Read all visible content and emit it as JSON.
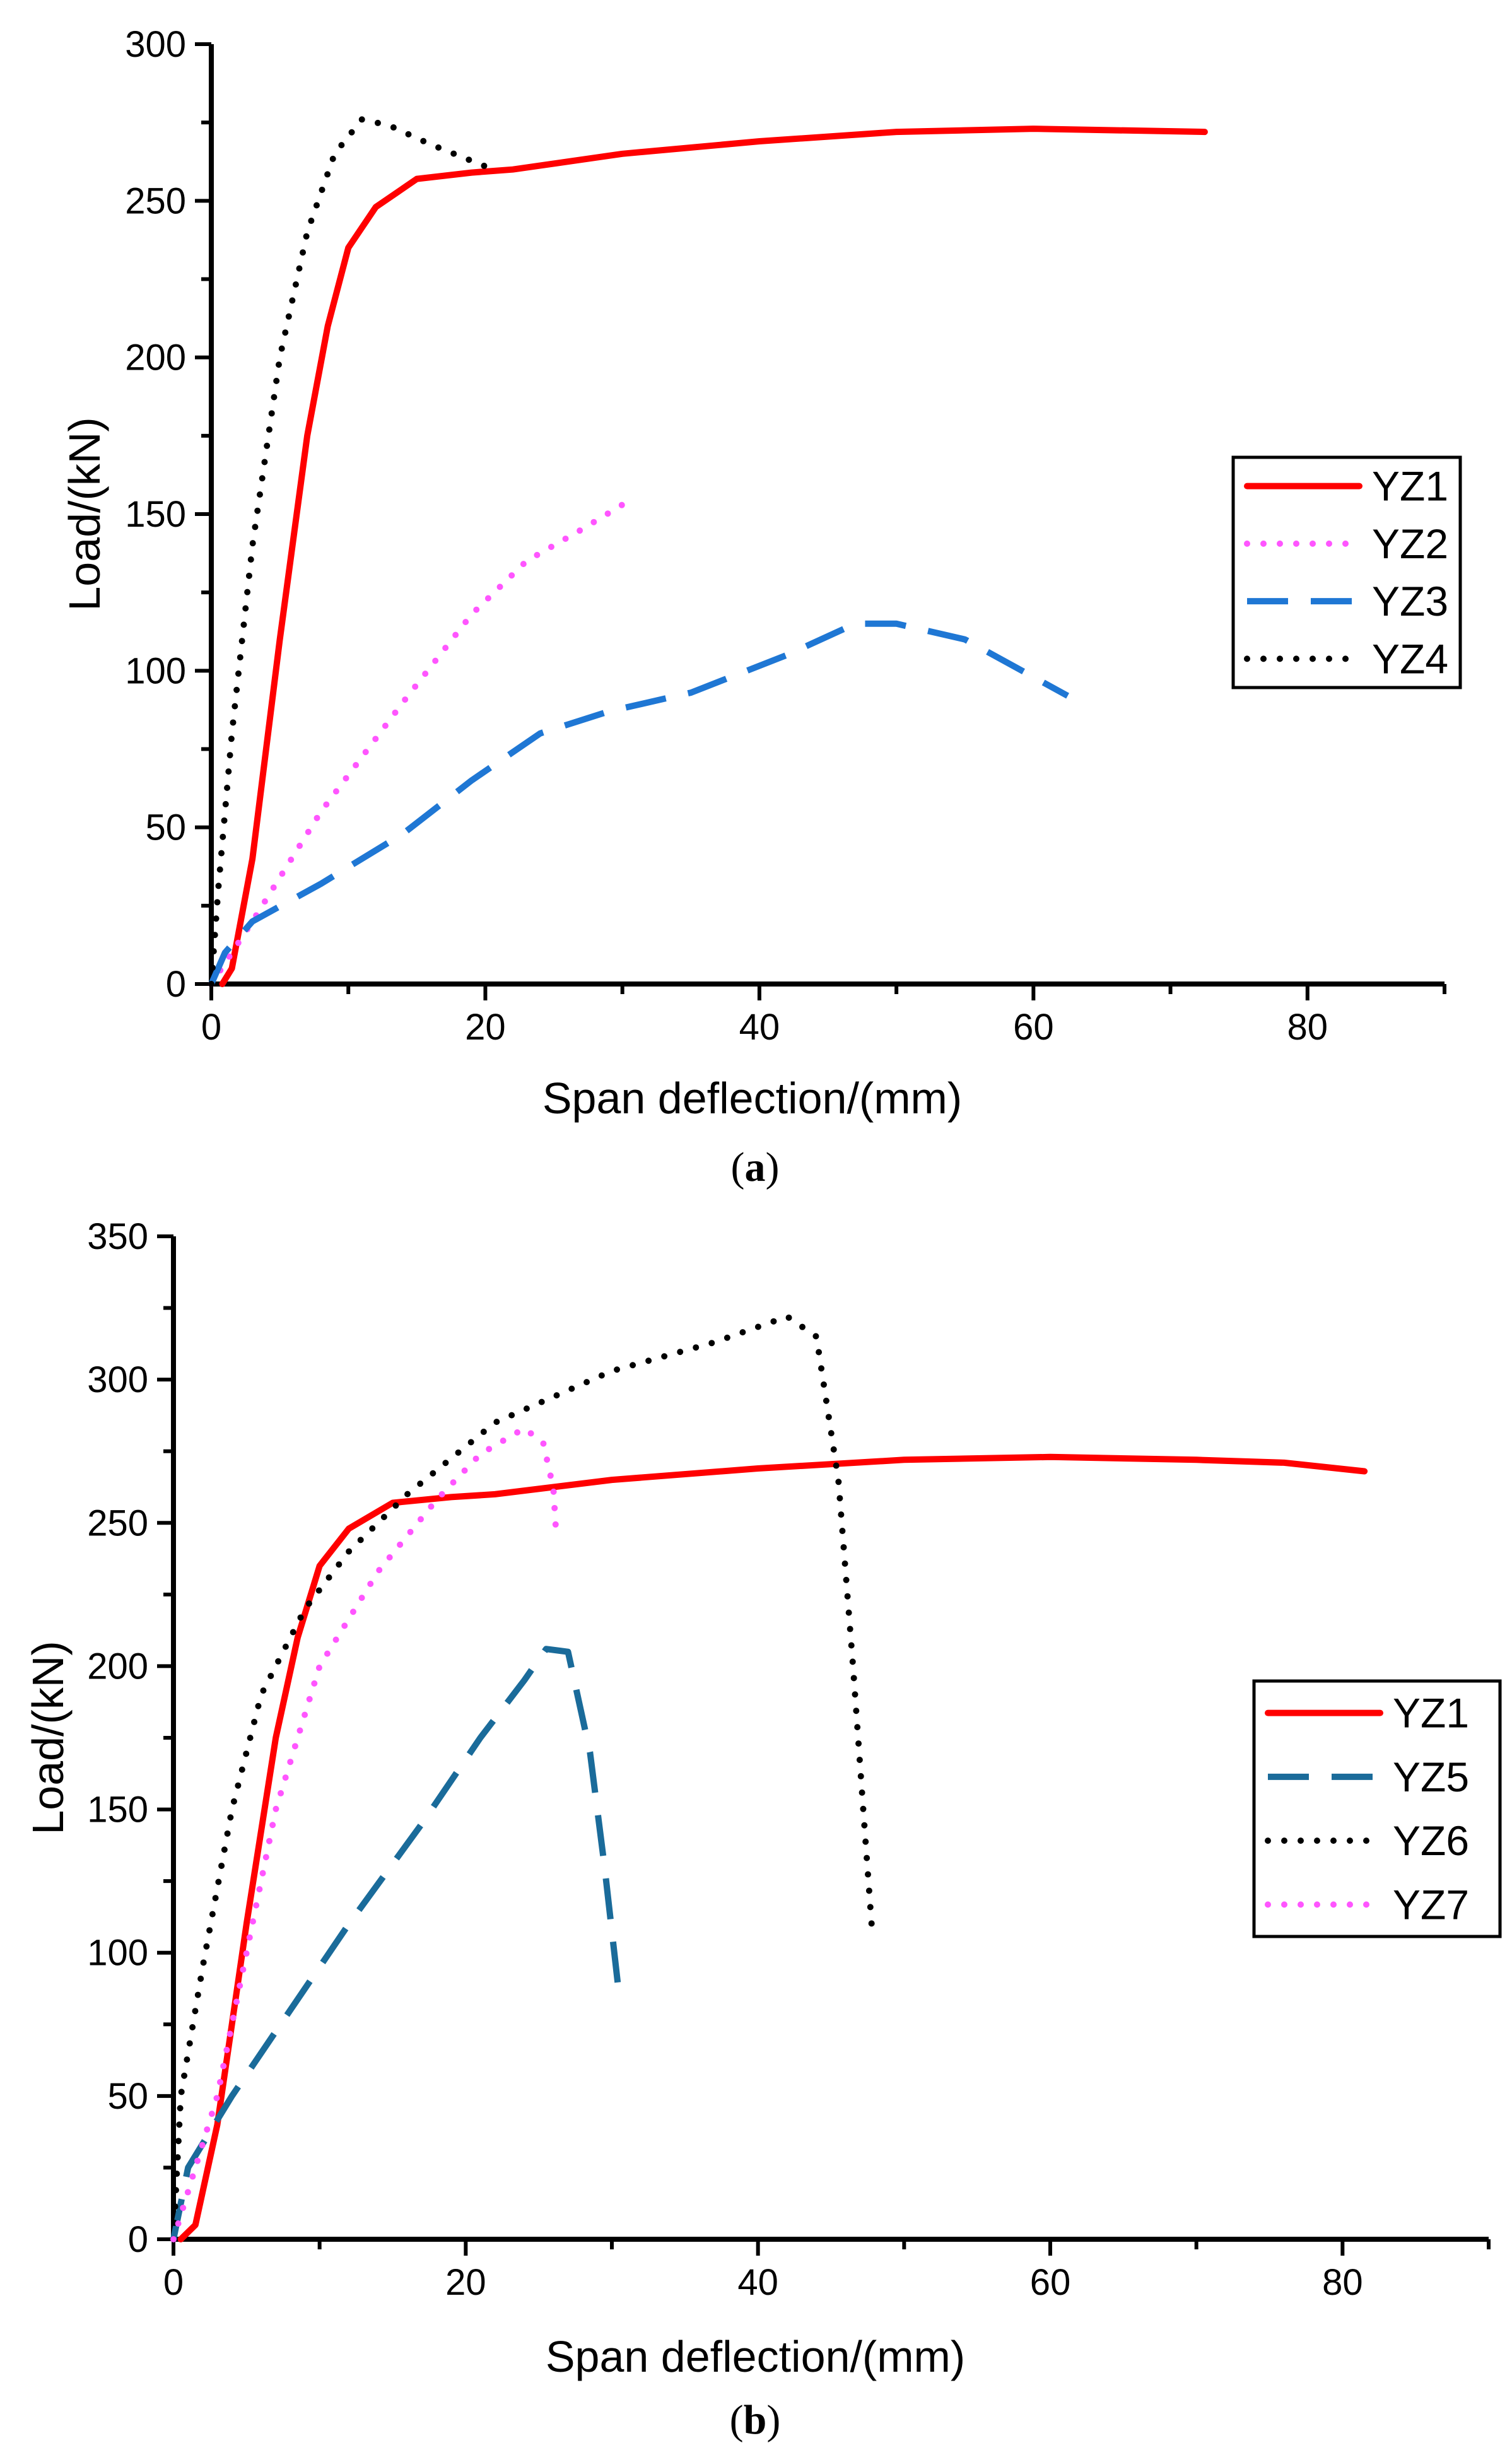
{
  "chart_data": [
    {
      "type": "line",
      "panel_label": "a",
      "caption_left": "(",
      "caption_right": ")",
      "xlabel": "Span deflection/(mm)",
      "ylabel": "Load/(kN)",
      "xlim": [
        0,
        90
      ],
      "ylim": [
        0,
        300
      ],
      "xticks": [
        0,
        20,
        40,
        60,
        80
      ],
      "yticks": [
        0,
        50,
        100,
        150,
        200,
        250,
        300
      ],
      "legend_position": "right-middle",
      "series": [
        {
          "name": "YZ1",
          "color": "#ff0000",
          "style": "solid",
          "points": [
            [
              0.8,
              0
            ],
            [
              1.5,
              5
            ],
            [
              3,
              40
            ],
            [
              5,
              110
            ],
            [
              7,
              175
            ],
            [
              8.5,
              210
            ],
            [
              10,
              235
            ],
            [
              12,
              248
            ],
            [
              15,
              257
            ],
            [
              19,
              259
            ],
            [
              22,
              260
            ],
            [
              30,
              265
            ],
            [
              40,
              269
            ],
            [
              50,
              272
            ],
            [
              60,
              273
            ],
            [
              72.5,
              272
            ]
          ]
        },
        {
          "name": "YZ2",
          "color": "#ff55ff",
          "style": "dotted",
          "points": [
            [
              0,
              0
            ],
            [
              3,
              20
            ],
            [
              8,
              55
            ],
            [
              14,
              90
            ],
            [
              19,
              118
            ],
            [
              23,
              135
            ],
            [
              27,
              145
            ],
            [
              30,
              153
            ]
          ]
        },
        {
          "name": "YZ3",
          "color": "#1f77d4",
          "style": "dashed",
          "points": [
            [
              0,
              0
            ],
            [
              1,
              10
            ],
            [
              3,
              20
            ],
            [
              8,
              32
            ],
            [
              14,
              48
            ],
            [
              19,
              65
            ],
            [
              24,
              80
            ],
            [
              29,
              87
            ],
            [
              35,
              93
            ],
            [
              42,
              105
            ],
            [
              47,
              115
            ],
            [
              50,
              115
            ],
            [
              55,
              110
            ],
            [
              62.5,
              92
            ]
          ]
        },
        {
          "name": "YZ4",
          "color": "#000000",
          "style": "dotted",
          "points": [
            [
              0,
              0
            ],
            [
              0.5,
              30
            ],
            [
              1.5,
              80
            ],
            [
              3,
              140
            ],
            [
              5,
              200
            ],
            [
              7,
              240
            ],
            [
              9,
              265
            ],
            [
              11,
              276
            ],
            [
              13,
              274
            ],
            [
              16,
              268
            ],
            [
              20,
              261
            ]
          ]
        }
      ]
    },
    {
      "type": "line",
      "panel_label": "b",
      "caption_left": "(",
      "caption_right": ")",
      "xlabel": "Span deflection/(mm)",
      "ylabel": "Load/(kN)",
      "xlim": [
        0,
        90
      ],
      "ylim": [
        0,
        350
      ],
      "xticks": [
        0,
        20,
        40,
        60,
        80
      ],
      "yticks": [
        0,
        50,
        100,
        150,
        200,
        250,
        300,
        350
      ],
      "legend_position": "right-middle",
      "series": [
        {
          "name": "YZ1",
          "color": "#ff0000",
          "style": "solid",
          "points": [
            [
              0.5,
              0
            ],
            [
              1.5,
              5
            ],
            [
              3,
              40
            ],
            [
              5,
              110
            ],
            [
              7,
              175
            ],
            [
              8.5,
              210
            ],
            [
              10,
              235
            ],
            [
              12,
              248
            ],
            [
              15,
              257
            ],
            [
              19,
              259
            ],
            [
              22,
              260
            ],
            [
              30,
              265
            ],
            [
              40,
              269
            ],
            [
              50,
              272
            ],
            [
              60,
              273
            ],
            [
              70,
              272
            ],
            [
              76,
              271
            ],
            [
              81.5,
              268
            ]
          ]
        },
        {
          "name": "YZ5",
          "color": "#1a6b9a",
          "style": "dashed",
          "points": [
            [
              0,
              0
            ],
            [
              1,
              25
            ],
            [
              4,
              50
            ],
            [
              8,
              80
            ],
            [
              12,
              110
            ],
            [
              17,
              145
            ],
            [
              21,
              175
            ],
            [
              24,
              195
            ],
            [
              25.5,
              206
            ],
            [
              27,
              205
            ],
            [
              28.5,
              170
            ],
            [
              29.5,
              130
            ],
            [
              30.5,
              85
            ]
          ]
        },
        {
          "name": "YZ6",
          "color": "#000000",
          "style": "dotted",
          "points": [
            [
              0,
              0
            ],
            [
              0.5,
              50
            ],
            [
              2,
              95
            ],
            [
              4,
              150
            ],
            [
              6,
              190
            ],
            [
              9,
              220
            ],
            [
              12,
              240
            ],
            [
              16,
              260
            ],
            [
              22,
              285
            ],
            [
              30,
              303
            ],
            [
              37,
              313
            ],
            [
              42,
              322
            ],
            [
              44,
              315
            ],
            [
              45.5,
              265
            ],
            [
              46.5,
              200
            ],
            [
              47.2,
              150
            ],
            [
              47.8,
              108
            ]
          ]
        },
        {
          "name": "YZ7",
          "color": "#ff55ff",
          "style": "dotted",
          "points": [
            [
              0,
              0
            ],
            [
              3,
              50
            ],
            [
              7,
              150
            ],
            [
              10,
              200
            ],
            [
              14,
              233
            ],
            [
              18,
              258
            ],
            [
              21,
              274
            ],
            [
              24,
              283
            ],
            [
              25.3,
              278
            ],
            [
              26,
              262
            ],
            [
              26.2,
              245
            ]
          ]
        }
      ]
    }
  ]
}
